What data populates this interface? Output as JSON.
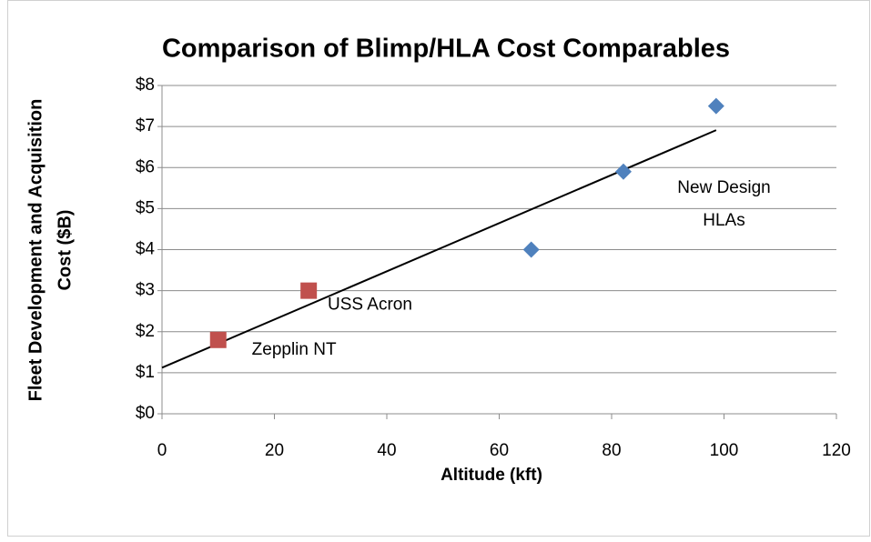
{
  "chart_data": {
    "type": "scatter",
    "title": "Comparison of Blimp/HLA Cost Comparables",
    "x_label": "Altitude (kft)",
    "y_label": [
      "Fleet Development and Acquisition",
      "Cost ($B)"
    ],
    "series": [
      {
        "color": "#4f81bd",
        "marker": "diamond",
        "x": [
          65.7,
          82.1,
          98.6
        ],
        "values": [
          4.0,
          5.9,
          7.5
        ]
      },
      {
        "color": "#c0504d",
        "marker": "square",
        "x": [
          10.0,
          26.1
        ],
        "values": [
          1.8,
          3.0
        ]
      }
    ],
    "trendline": {
      "type": "linear",
      "color": "#000000"
    },
    "annotations": [
      {
        "text": [
          "New Design",
          "HLAs"
        ],
        "x": 100,
        "y": 5.1
      },
      {
        "text": [
          "USS Acron"
        ],
        "x": 37,
        "y": 2.65
      },
      {
        "text": [
          "Zepplin NT"
        ],
        "x": 23.5,
        "y": 1.55
      }
    ],
    "xlim": [
      0,
      120
    ],
    "xticks": [
      0,
      20,
      40,
      60,
      80,
      100,
      120
    ],
    "ylim": [
      0,
      8
    ],
    "yticks": [
      {
        "value": 0,
        "label": "$0"
      },
      {
        "value": 1,
        "label": "$1"
      },
      {
        "value": 2,
        "label": "$2"
      },
      {
        "value": 3,
        "label": "$3"
      },
      {
        "value": 4,
        "label": "$4"
      },
      {
        "value": 5,
        "label": "$5"
      },
      {
        "value": 6,
        "label": "$6"
      },
      {
        "value": 7,
        "label": "$7"
      },
      {
        "value": 8,
        "label": "$8"
      }
    ],
    "grid": true
  }
}
